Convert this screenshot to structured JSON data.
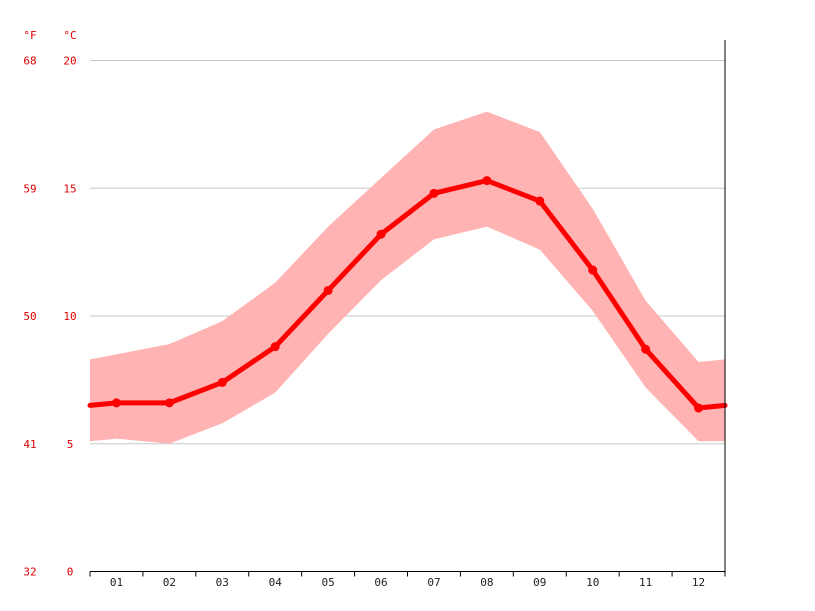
{
  "chart_data": {
    "type": "line",
    "categories": [
      "01",
      "02",
      "03",
      "04",
      "05",
      "06",
      "07",
      "08",
      "09",
      "10",
      "11",
      "12"
    ],
    "unit_f_label": "°F",
    "unit_c_label": "°C",
    "celsius_ticks": [
      "0",
      "5",
      "10",
      "15",
      "20"
    ],
    "fahrenheit_ticks": [
      "32",
      "41",
      "50",
      "59",
      "68"
    ],
    "ylim": [
      0,
      20
    ],
    "grid": true,
    "series": [
      {
        "values": [
          6.6,
          6.6,
          7.4,
          8.8,
          11.0,
          13.2,
          14.8,
          15.3,
          14.5,
          11.8,
          8.7,
          6.4
        ],
        "edge_values": [
          6.5,
          6.5
        ],
        "color": "#ff0000"
      }
    ],
    "range_band": {
      "upper": [
        8.5,
        8.9,
        9.8,
        11.3,
        13.5,
        15.4,
        17.3,
        18.0,
        17.2,
        14.2,
        10.6,
        8.2
      ],
      "lower": [
        5.2,
        5.0,
        5.8,
        7.0,
        9.3,
        11.4,
        13.0,
        13.5,
        12.6,
        10.2,
        7.2,
        5.1
      ],
      "upper_edges": [
        8.3,
        8.3
      ],
      "lower_edges": [
        5.1,
        5.1
      ],
      "color": "#ffb3b3"
    }
  }
}
